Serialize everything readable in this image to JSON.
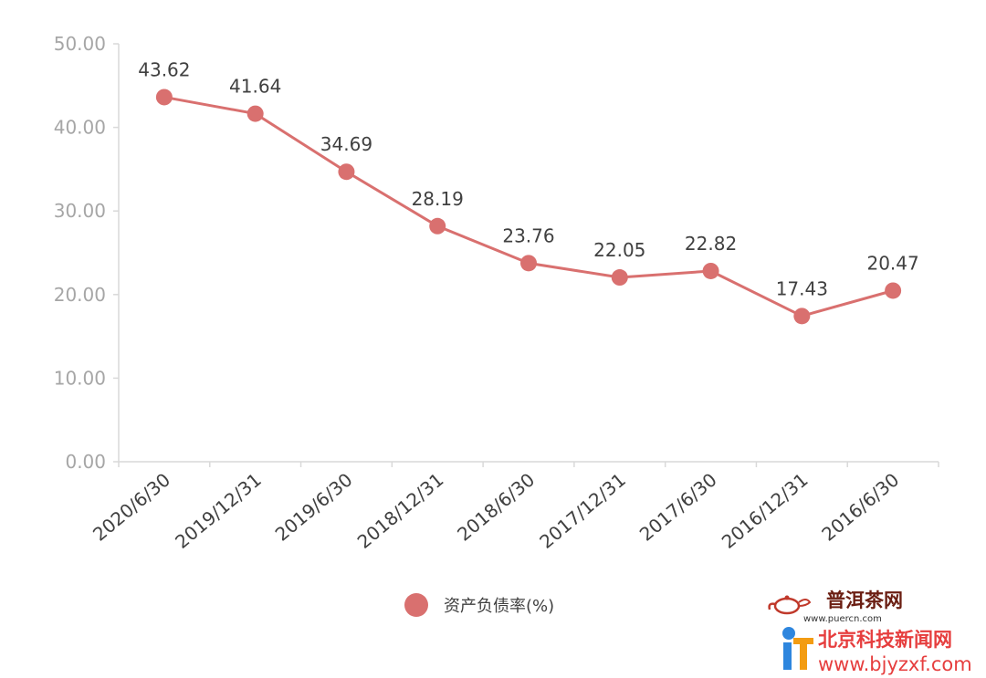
{
  "chart_data": {
    "type": "line",
    "categories": [
      "2020/6/30",
      "2019/12/31",
      "2019/6/30",
      "2018/12/31",
      "2018/6/30",
      "2017/12/31",
      "2017/6/30",
      "2016/12/31",
      "2016/6/30"
    ],
    "series": [
      {
        "name": "资产负债率(%)",
        "values": [
          43.62,
          41.64,
          34.69,
          28.19,
          23.76,
          22.05,
          22.82,
          17.43,
          20.47
        ]
      }
    ],
    "data_labels": [
      "43.62",
      "41.64",
      "34.69",
      "28.19",
      "23.76",
      "22.05",
      "22.82",
      "17.43",
      "20.47"
    ],
    "y_tick_labels": [
      "0.00",
      "10.00",
      "20.00",
      "30.00",
      "40.00",
      "50.00"
    ],
    "y_ticks": [
      0,
      10,
      20,
      30,
      40,
      50
    ],
    "ylim": [
      0,
      50
    ],
    "grid": false,
    "legend_position": "bottom",
    "title": "",
    "xlabel": "",
    "ylabel": "",
    "series_color": "#d9706f"
  },
  "watermarks": {
    "site1_name": "普洱茶网",
    "site1_url": "www.puercn.com",
    "site2_name": "北京科技新闻网",
    "site2_url": "www.bjyzxf.com"
  }
}
